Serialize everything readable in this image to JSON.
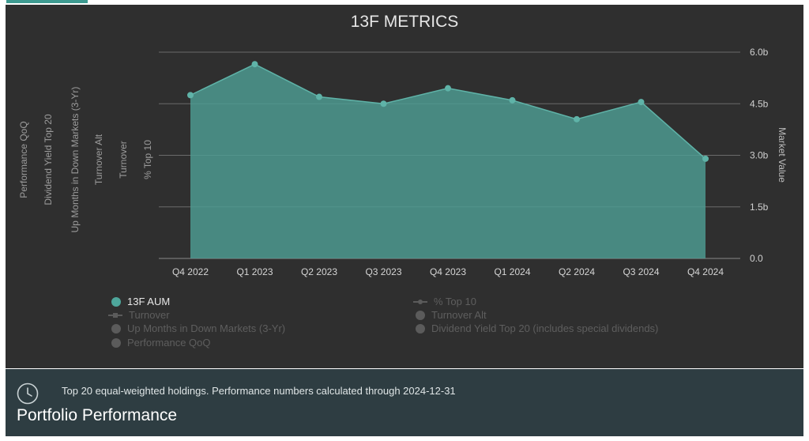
{
  "chart_data": {
    "type": "area",
    "title": "13F METRICS",
    "categories": [
      "Q4 2022",
      "Q1 2023",
      "Q2 2023",
      "Q3 2023",
      "Q4 2023",
      "Q1 2024",
      "Q2 2024",
      "Q3 2024",
      "Q4 2024"
    ],
    "series": [
      {
        "name": "13F AUM",
        "values": [
          4.75,
          5.65,
          4.7,
          4.5,
          4.95,
          4.6,
          4.05,
          4.55,
          2.9
        ],
        "color": "#4e9e94",
        "visible": true
      }
    ],
    "ylabel": "Market Value",
    "ylim": [
      0,
      6
    ],
    "y_ticks": [
      "0.0",
      "1.5b",
      "3.0b",
      "4.5b",
      "6.0b"
    ],
    "grid": true,
    "legend_position": "bottom",
    "left_axis_labels": [
      "Performance QoQ",
      "Dividend Yield Top 20",
      "Up Months in Down Markets (3-Yr)",
      "Turnover Alt",
      "Turnover",
      "% Top 10"
    ],
    "legend": [
      {
        "label": "13F AUM",
        "marker": "circle",
        "active": true
      },
      {
        "label": "% Top 10",
        "marker": "line-dot",
        "active": false
      },
      {
        "label": "Turnover",
        "marker": "line-square",
        "active": false
      },
      {
        "label": "Turnover Alt",
        "marker": "circle",
        "active": false
      },
      {
        "label": "Up Months in Down Markets (3-Yr)",
        "marker": "circle",
        "active": false
      },
      {
        "label": "Dividend Yield Top 20 (includes special dividends)",
        "marker": "circle",
        "active": false
      },
      {
        "label": "Performance QoQ",
        "marker": "circle",
        "active": false
      }
    ]
  },
  "footer": {
    "icon": "clock-icon",
    "note": "Top 20 equal-weighted holdings. Performance numbers calculated through 2024-12-31",
    "title": "Portfolio Performance"
  }
}
